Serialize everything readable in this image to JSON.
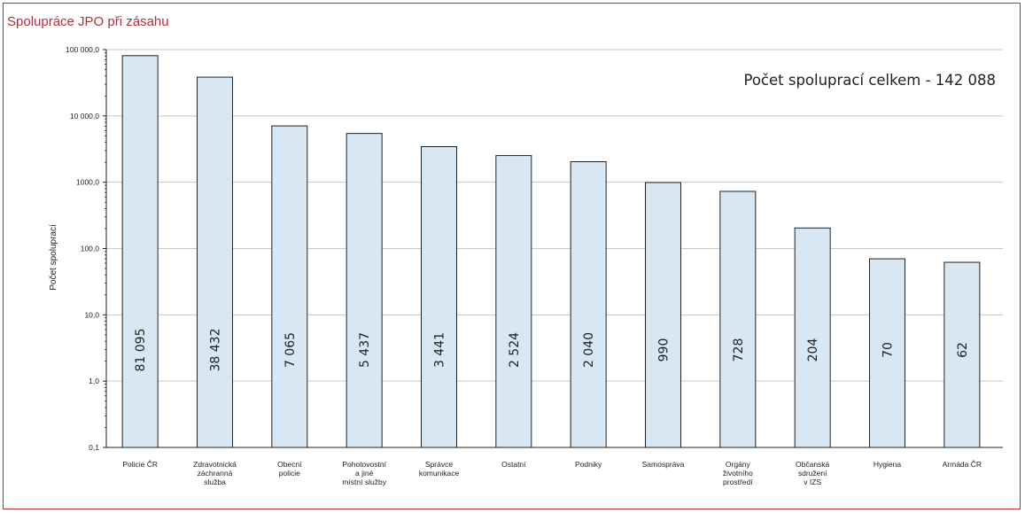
{
  "page": {
    "title": "Spolupráce JPO při zásahu"
  },
  "colors": {
    "bar_fill": "#d7e7f4",
    "bar_stroke": "#222222",
    "title": "#b0303b",
    "grid": "#c8c8c8"
  },
  "chart_data": {
    "type": "bar",
    "title": "Spolupráce JPO při zásahu",
    "xlabel": "",
    "ylabel": "Počet spoluprací",
    "yscale": "log",
    "ylim": [
      0.1,
      100000
    ],
    "yticks": [
      0.1,
      1,
      10,
      100,
      1000,
      10000,
      100000
    ],
    "ytick_labels": [
      "0,1",
      "1,0",
      "10,0",
      "100,0",
      "1000,0",
      "10 000,0",
      "100 000,0"
    ],
    "grid": "horizontal",
    "annotation": "Počet spoluprací celkem - 142 088",
    "categories": [
      [
        "Policie ČR"
      ],
      [
        "Zdravotnická",
        "záchranná",
        "služba"
      ],
      [
        "Obecní",
        "policie"
      ],
      [
        "Pohotovostní",
        "a jiné",
        "místní služby"
      ],
      [
        "Správce",
        "komunikace"
      ],
      [
        "Ostatní"
      ],
      [
        "Podniky"
      ],
      [
        "Samospráva"
      ],
      [
        "Orgány",
        "životního",
        "prostředí"
      ],
      [
        "Občanská",
        "sdružení",
        "v IZS"
      ],
      [
        "Hygiena"
      ],
      [
        "Armáda ČR"
      ]
    ],
    "values": [
      81095,
      38432,
      7065,
      5437,
      3441,
      2524,
      2040,
      990,
      728,
      204,
      70,
      62
    ],
    "value_labels": [
      "81 095",
      "38 432",
      "7 065",
      "5 437",
      "3 441",
      "2 524",
      "2 040",
      "990",
      "728",
      "204",
      "70",
      "62"
    ]
  }
}
